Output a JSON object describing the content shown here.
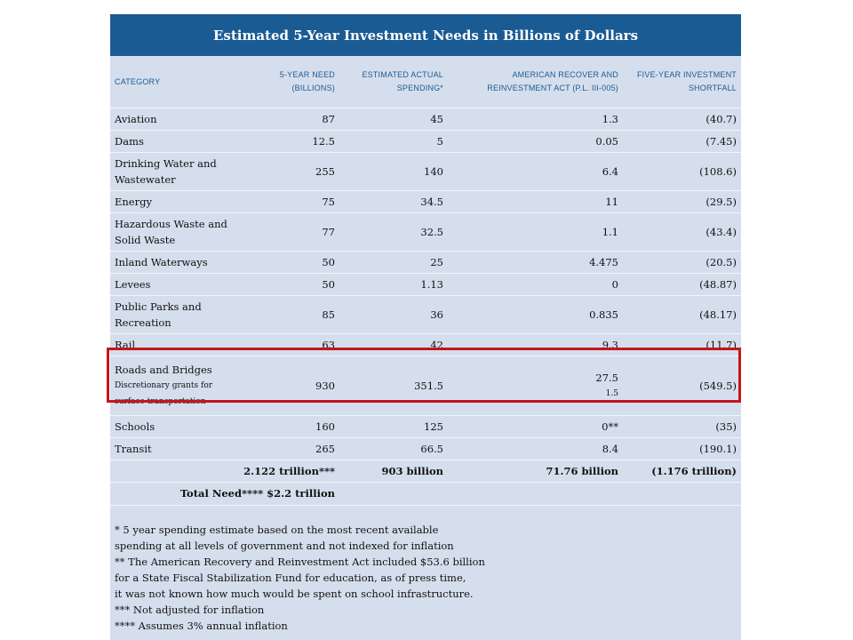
{
  "title": "Estimated 5-Year Investment Needs in Billions of Dollars",
  "headers": {
    "category": "CATEGORY",
    "need": [
      "5-YEAR NEED",
      "(BILLIONS)"
    ],
    "spending": [
      "ESTIMATED ACTUAL",
      "SPENDING*"
    ],
    "arra": [
      "AMERICAN RECOVER AND",
      "REINVESTMENT ACT (P.L. III-005)"
    ],
    "shortfall": [
      "FIVE-YEAR INVESTMENT",
      "SHORTFALL"
    ]
  },
  "rows": [
    {
      "category": "Aviation",
      "need": "87",
      "spending": "45",
      "arra": "1.3",
      "shortfall": "(40.7)"
    },
    {
      "category": "Dams",
      "need": "12.5",
      "spending": "5",
      "arra": "0.05",
      "shortfall": "(7.45)"
    },
    {
      "category": [
        "Drinking Water and",
        "Wastewater"
      ],
      "need": "255",
      "spending": "140",
      "arra": "6.4",
      "shortfall": "(108.6)"
    },
    {
      "category": "Energy",
      "need": "75",
      "spending": "34.5",
      "arra": "11",
      "shortfall": "(29.5)"
    },
    {
      "category": [
        "Hazardous Waste and",
        "Solid Waste"
      ],
      "need": "77",
      "spending": "32.5",
      "arra": "1.1",
      "shortfall": "(43.4)"
    },
    {
      "category": "Inland Waterways",
      "need": "50",
      "spending": "25",
      "arra": "4.475",
      "shortfall": "(20.5)"
    },
    {
      "category": "Levees",
      "need": "50",
      "spending": "1.13",
      "arra": "0",
      "shortfall": "(48.87)"
    },
    {
      "category": [
        "Public Parks and",
        "Recreation"
      ],
      "need": "85",
      "spending": "36",
      "arra": "0.835",
      "shortfall": "(48.17)"
    },
    {
      "category": "Rail",
      "need": "63",
      "spending": "42",
      "arra": "9.3",
      "shortfall": "(11.7)"
    },
    {
      "category": "Roads and Bridges",
      "sub": [
        "Discretionary grants for",
        "surface transportation"
      ],
      "need": "930",
      "spending": "351.5",
      "arra": "27.5",
      "arra_sub": "1.5",
      "shortfall": "(549.5)"
    },
    {
      "category": "Schools",
      "need": "160",
      "spending": "125",
      "arra": "0**",
      "shortfall": "(35)"
    },
    {
      "category": "Transit",
      "need": "265",
      "spending": "66.5",
      "arra": "8.4",
      "shortfall": "(190.1)"
    }
  ],
  "totals": {
    "need": "2.122 trillion***",
    "spending": "903 billion",
    "arra": "71.76 billion",
    "shortfall": "(1.176 trillion)"
  },
  "total_need": "Total Need**** $2.2 trillion",
  "notes": [
    "* 5 year spending estimate based on the most recent available",
    "spending at all levels of government and not indexed for inflation",
    "** The American Recovery and Reinvestment Act included $53.6 billion",
    "for a State Fiscal Stabilization Fund for education, as of press time,",
    "it was not known how much would be spent on school infrastructure.",
    "*** Not adjusted for inflation",
    "**** Assumes 3% annual inflation"
  ],
  "colors": {
    "header": "#1b5b94",
    "panel": "#d5deec",
    "highlight": "#c4161c"
  }
}
